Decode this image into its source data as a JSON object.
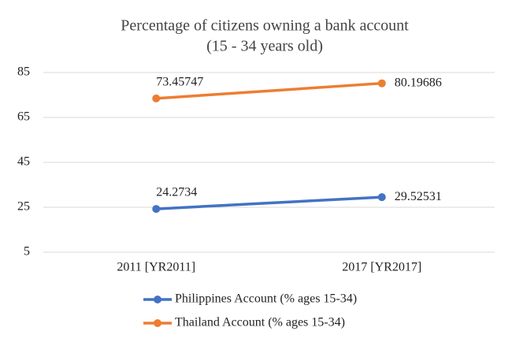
{
  "chart_data": {
    "type": "line",
    "title": "Percentage of citizens owning a bank account",
    "subtitle": "(15 - 34 years old)",
    "categories": [
      "2011 [YR2011]",
      "2017 [YR2017]"
    ],
    "series": [
      {
        "name": "Philippines Account (% ages 15-34)",
        "color": "#4472c4",
        "values": [
          24.2734,
          29.52531
        ]
      },
      {
        "name": "Thailand Account (% ages 15-34)",
        "color": "#ed7d31",
        "values": [
          73.45747,
          80.19686
        ]
      }
    ],
    "ylim": [
      5,
      85
    ],
    "yticks": [
      5,
      25,
      45,
      65,
      85
    ],
    "grid": true,
    "legend": "bottom"
  }
}
